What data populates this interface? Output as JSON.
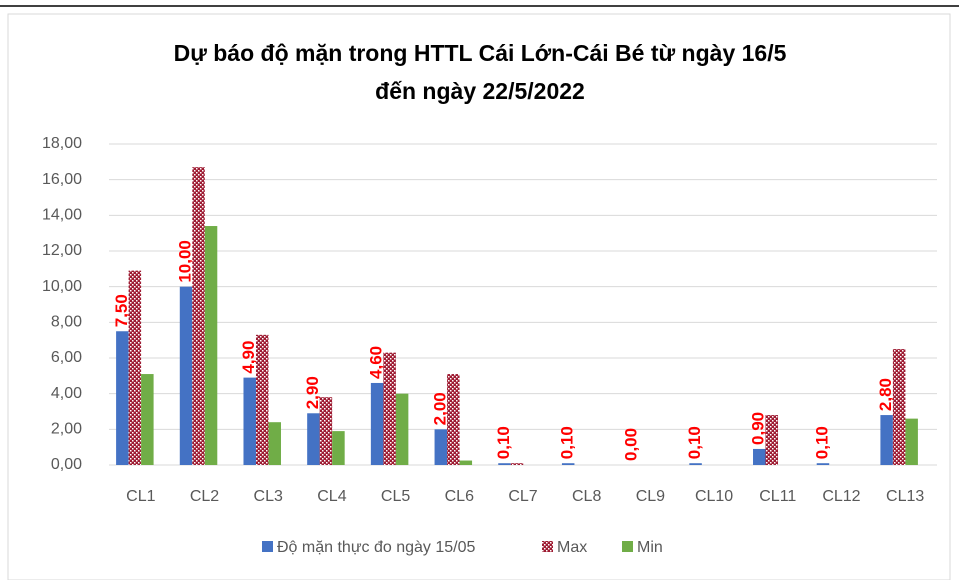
{
  "chart_data": {
    "type": "bar",
    "title": [
      "Dự báo độ mặn trong HTTL Cái Lớn-Cái Bé từ ngày 16/5",
      "đến ngày 22/5/2022"
    ],
    "categories": [
      "CL1",
      "CL2",
      "CL3",
      "CL4",
      "CL5",
      "CL6",
      "CL7",
      "CL8",
      "CL9",
      "CL10",
      "CL11",
      "CL12",
      "CL13"
    ],
    "series": [
      {
        "name": "Độ mặn thực đo ngày 15/05",
        "color": "#4472c4",
        "values": [
          7.5,
          10,
          4.9,
          2.9,
          4.6,
          2,
          0.1,
          0.1,
          0,
          0.1,
          0.9,
          0.1,
          2.8
        ],
        "value_labels": [
          "7,50",
          "10,00",
          "4,90",
          "2,90",
          "4,60",
          "2,00",
          "0,10",
          "0,10",
          "0,00",
          "0,10",
          "0,90",
          "0,10",
          "2,80"
        ]
      },
      {
        "name": "Max",
        "color": "#9e1b32",
        "pattern": true,
        "values": [
          10.9,
          16.7,
          7.3,
          3.8,
          6.3,
          5.1,
          0.1,
          0,
          0,
          0,
          2.8,
          0,
          6.5
        ]
      },
      {
        "name": "Min",
        "color": "#70ad47",
        "values": [
          5.1,
          13.4,
          2.4,
          1.9,
          4,
          0.25,
          0,
          0,
          0,
          0,
          0,
          0,
          2.6
        ]
      }
    ],
    "ylim": [
      0,
      18
    ],
    "yticks": [
      {
        "value": 0,
        "label": "0,00"
      },
      {
        "value": 2,
        "label": "2,00"
      },
      {
        "value": 4,
        "label": "4,00"
      },
      {
        "value": 6,
        "label": "6,00"
      },
      {
        "value": 8,
        "label": "8,00"
      },
      {
        "value": 10,
        "label": "10,00"
      },
      {
        "value": 12,
        "label": "12,00"
      },
      {
        "value": 14,
        "label": "14,00"
      },
      {
        "value": 16,
        "label": "16,00"
      },
      {
        "value": 18,
        "label": "18,00"
      }
    ],
    "grid": true,
    "legend": "bottom"
  }
}
